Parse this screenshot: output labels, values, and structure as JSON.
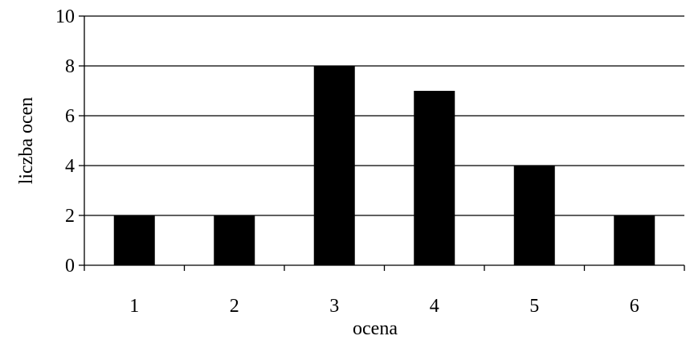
{
  "chart_data": {
    "type": "bar",
    "categories": [
      "1",
      "2",
      "3",
      "4",
      "5",
      "6"
    ],
    "values": [
      2,
      2,
      8,
      7,
      4,
      2
    ],
    "xlabel": "ocena",
    "ylabel": "liczba ocen",
    "ylim": [
      0,
      10
    ],
    "yticks": [
      0,
      2,
      4,
      6,
      8,
      10
    ],
    "grid": true,
    "legend": "none",
    "bar_color": "#000000"
  }
}
